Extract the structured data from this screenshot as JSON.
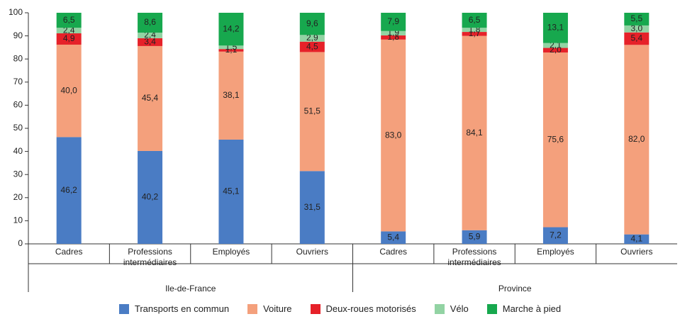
{
  "chart_data": {
    "type": "stacked_bar",
    "categories": [
      "Cadres",
      "Professions intermédiaires",
      "Employés",
      "Ouvriers",
      "Cadres",
      "Professions intermédiaires",
      "Employés",
      "Ouvriers"
    ],
    "groups": [
      "Ile-de-France",
      "Province"
    ],
    "ylim": [
      0,
      100
    ],
    "yticks": [
      0,
      10,
      20,
      30,
      40,
      50,
      60,
      70,
      80,
      90,
      100
    ],
    "series": [
      {
        "name": "Transports en commun",
        "color": "#4a7cc4",
        "values": [
          46.2,
          40.2,
          45.1,
          31.5,
          5.4,
          5.9,
          7.2,
          4.1
        ],
        "value_labels": [
          "46,2",
          "40,2",
          "45,1",
          "31,5",
          "5,4",
          "5,9",
          "7,2",
          "4,1"
        ]
      },
      {
        "name": "Voiture",
        "color": "#f4a07c",
        "values": [
          40.0,
          45.4,
          38.1,
          51.5,
          83.0,
          84.1,
          75.6,
          82.0
        ],
        "value_labels": [
          "40,0",
          "45,4",
          "38,1",
          "51,5",
          "83,0",
          "84,1",
          "75,6",
          "82,0"
        ]
      },
      {
        "name": "Deux-roues motorisés",
        "color": "#e62129",
        "values": [
          4.9,
          3.4,
          1.1,
          4.5,
          1.8,
          1.7,
          2.0,
          5.4
        ],
        "value_labels": [
          "4,9",
          "3,4",
          "1,1",
          "4,5",
          "1,8",
          "1,7",
          "2,0",
          "5,4"
        ]
      },
      {
        "name": "Vélo",
        "color": "#92d3a3",
        "values": [
          2.4,
          2.4,
          1.5,
          2.9,
          1.9,
          1.8,
          2.1,
          3.0
        ],
        "value_labels": [
          "2,4",
          "2,4",
          "1,5",
          "2,9",
          "1,9",
          "1,8",
          "2,1",
          "3,0"
        ]
      },
      {
        "name": "Marche à pied",
        "color": "#17a84e",
        "values": [
          6.5,
          8.6,
          14.2,
          9.6,
          7.9,
          6.5,
          13.1,
          5.5
        ],
        "value_labels": [
          "6,5",
          "8,6",
          "14,2",
          "9,6",
          "7,9",
          "6,5",
          "13,1",
          "5,5"
        ]
      }
    ]
  }
}
